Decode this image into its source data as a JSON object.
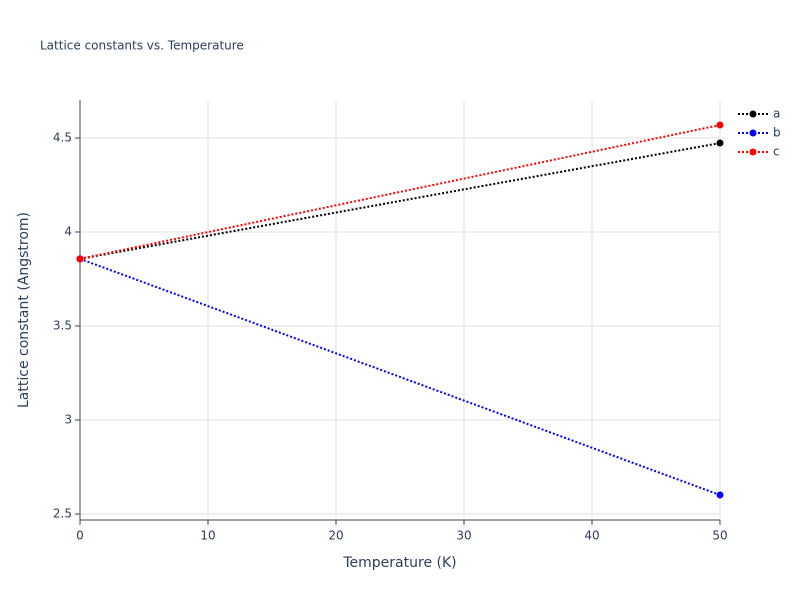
{
  "chart_data": {
    "type": "line",
    "title": "Lattice constants vs. Temperature",
    "x_label": "Temperature (K)",
    "y_label": "Lattice constant (Angstrom)",
    "x": [
      0,
      50
    ],
    "series": [
      {
        "name": "a",
        "color": "#000000",
        "values": [
          3.857,
          4.473
        ]
      },
      {
        "name": "b",
        "color": "#0000ff",
        "values": [
          3.857,
          2.601
        ]
      },
      {
        "name": "c",
        "color": "#ff0000",
        "values": [
          3.857,
          4.569
        ]
      }
    ],
    "xlim": [
      0,
      50
    ],
    "xticks": [
      0,
      10,
      20,
      30,
      40,
      50
    ],
    "ylim": [
      2.468,
      4.702
    ],
    "yticks": [
      2.5,
      3,
      3.5,
      4,
      4.5
    ],
    "grid": true,
    "legend": "top-right"
  }
}
